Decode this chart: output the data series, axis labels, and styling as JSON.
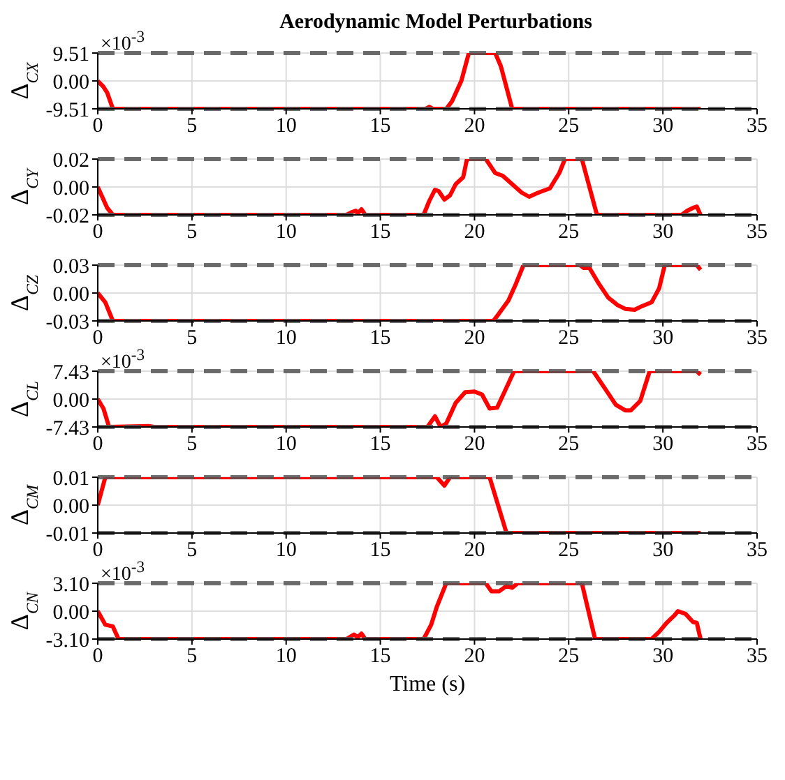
{
  "chart_data": [
    {
      "type": "line",
      "title": "Aerodynamic Model Perturbations",
      "ylabel": "Δ$_{CX}$",
      "annotations": [
        "×10$^{-3}$"
      ],
      "x": [
        0,
        0.3,
        0.5,
        0.8,
        17.4,
        17.6,
        17.8,
        18.5,
        18.8,
        19.3,
        19.7,
        21.1,
        21.4,
        22,
        32
      ],
      "series": [
        {
          "color": "#ff0000",
          "values": [
            0,
            -2,
            -4,
            -9.51,
            -9.51,
            -8.8,
            -9.51,
            -9.51,
            -7,
            0,
            9.51,
            9.51,
            5,
            -9.51,
            -9.51
          ]
        }
      ],
      "xlim": [
        0,
        35
      ],
      "xticks": [
        0,
        5,
        10,
        15,
        20,
        25,
        30,
        35
      ],
      "ylim": [
        -9.51,
        9.51
      ],
      "yticks": [
        {
          "value": -9.51,
          "label": "-9.51"
        },
        {
          "value": 0,
          "label": "0.00"
        },
        {
          "value": 9.51,
          "label": "9.51"
        }
      ],
      "grid": true,
      "line_style": "solid",
      "ref_lines": [
        {
          "axis": "y",
          "value": 9.51,
          "color": "#555555",
          "line_style": "dashed"
        },
        {
          "axis": "y",
          "value": -9.51,
          "color": "#555555",
          "line_style": "dashed"
        }
      ]
    },
    {
      "type": "line",
      "ylabel": "Δ$_{CY}$",
      "x": [
        0,
        0.5,
        0.8,
        13.2,
        13.5,
        13.7,
        13.8,
        14,
        14.2,
        17.3,
        17.6,
        17.9,
        18.1,
        18.4,
        18.7,
        19,
        19.4,
        19.6,
        20.6,
        21.1,
        21.5,
        22,
        22.5,
        22.9,
        23.4,
        24,
        24.5,
        24.8,
        25.7,
        26.5,
        31,
        31.3,
        31.6,
        31.8,
        32
      ],
      "series": [
        {
          "color": "#ff0000",
          "values": [
            0,
            -0.015,
            -0.02,
            -0.02,
            -0.018,
            -0.017,
            -0.019,
            -0.016,
            -0.02,
            -0.02,
            -0.01,
            -0.002,
            -0.003,
            -0.009,
            -0.006,
            0.002,
            0.007,
            0.02,
            0.02,
            0.01,
            0.008,
            0.002,
            -0.004,
            -0.007,
            -0.004,
            -0.001,
            0.01,
            0.02,
            0.02,
            -0.02,
            -0.02,
            -0.017,
            -0.015,
            -0.014,
            -0.02
          ]
        }
      ],
      "xlim": [
        0,
        35
      ],
      "xticks": [
        0,
        5,
        10,
        15,
        20,
        25,
        30,
        35
      ],
      "ylim": [
        -0.02,
        0.02
      ],
      "yticks": [
        {
          "value": -0.02,
          "label": "-0.02"
        },
        {
          "value": 0,
          "label": "0.00"
        },
        {
          "value": 0.02,
          "label": "0.02"
        }
      ],
      "grid": true,
      "line_style": "solid",
      "ref_lines": [
        {
          "axis": "y",
          "value": 0.02,
          "color": "#555555",
          "line_style": "dashed"
        },
        {
          "axis": "y",
          "value": -0.02,
          "color": "#555555",
          "line_style": "dashed"
        }
      ]
    },
    {
      "type": "line",
      "ylabel": "Δ$_{CZ}$",
      "x": [
        0,
        0.4,
        0.8,
        21,
        21.3,
        21.8,
        22.2,
        22.6,
        25.6,
        25.8,
        26.1,
        26.6,
        27.1,
        27.6,
        28,
        28.5,
        28.9,
        29.4,
        29.8,
        30.1,
        31.8,
        32
      ],
      "series": [
        {
          "color": "#ff0000",
          "values": [
            0,
            -0.01,
            -0.03,
            -0.03,
            -0.022,
            -0.008,
            0.01,
            0.03,
            0.03,
            0.027,
            0.027,
            0.01,
            -0.005,
            -0.013,
            -0.017,
            -0.018,
            -0.014,
            -0.01,
            0.005,
            0.03,
            0.03,
            0.025
          ]
        }
      ],
      "xlim": [
        0,
        35
      ],
      "xticks": [
        0,
        5,
        10,
        15,
        20,
        25,
        30,
        35
      ],
      "ylim": [
        -0.03,
        0.03
      ],
      "yticks": [
        {
          "value": -0.03,
          "label": "-0.03"
        },
        {
          "value": 0,
          "label": "0.00"
        },
        {
          "value": 0.03,
          "label": "0.03"
        }
      ],
      "grid": true,
      "line_style": "solid",
      "ref_lines": [
        {
          "axis": "y",
          "value": 0.03,
          "color": "#555555",
          "line_style": "dashed"
        },
        {
          "axis": "y",
          "value": -0.03,
          "color": "#555555",
          "line_style": "dashed"
        }
      ]
    },
    {
      "type": "line",
      "ylabel": "Δ$_{CL}$",
      "annotations": [
        "×10$^{-3}$"
      ],
      "x": [
        0,
        0.3,
        0.6,
        2.7,
        3,
        17.5,
        17.9,
        18.2,
        18.5,
        19,
        19.5,
        20,
        20.4,
        20.8,
        21.2,
        21.6,
        22.1,
        26.3,
        26.9,
        27.5,
        28,
        28.3,
        28.8,
        29.3,
        31.8,
        32
      ],
      "series": [
        {
          "color": "#ff0000",
          "values": [
            0,
            -2.5,
            -7.43,
            -7.2,
            -7.43,
            -7.43,
            -4.6,
            -7.43,
            -6.5,
            -1,
            1.8,
            2,
            1.2,
            -2.5,
            -2.3,
            2,
            7.43,
            7.43,
            3,
            -1.5,
            -3,
            -3,
            -0.5,
            7.43,
            7.43,
            6.5
          ]
        }
      ],
      "xlim": [
        0,
        35
      ],
      "xticks": [
        0,
        5,
        10,
        15,
        20,
        25,
        30,
        35
      ],
      "ylim": [
        -7.43,
        7.43
      ],
      "yticks": [
        {
          "value": -7.43,
          "label": "-7.43"
        },
        {
          "value": 0,
          "label": "0.00"
        },
        {
          "value": 7.43,
          "label": "7.43"
        }
      ],
      "grid": true,
      "line_style": "solid",
      "ref_lines": [
        {
          "axis": "y",
          "value": 7.43,
          "color": "#555555",
          "line_style": "dashed"
        },
        {
          "axis": "y",
          "value": -7.43,
          "color": "#555555",
          "line_style": "dashed"
        }
      ]
    },
    {
      "type": "line",
      "ylabel": "Δ$_{CM}$",
      "x": [
        0,
        0.4,
        18,
        18.4,
        18.7,
        20.8,
        21.7,
        32
      ],
      "series": [
        {
          "color": "#ff0000",
          "values": [
            0,
            0.01,
            0.01,
            0.007,
            0.01,
            0.01,
            -0.01,
            -0.01
          ]
        }
      ],
      "xlim": [
        0,
        35
      ],
      "xticks": [
        0,
        5,
        10,
        15,
        20,
        25,
        30,
        35
      ],
      "ylim": [
        -0.01,
        0.01
      ],
      "yticks": [
        {
          "value": -0.01,
          "label": "-0.01"
        },
        {
          "value": 0,
          "label": "0.00"
        },
        {
          "value": 0.01,
          "label": "0.01"
        }
      ],
      "grid": true,
      "line_style": "solid",
      "ref_lines": [
        {
          "axis": "y",
          "value": 0.01,
          "color": "#555555",
          "line_style": "dashed"
        },
        {
          "axis": "y",
          "value": -0.01,
          "color": "#555555",
          "line_style": "dashed"
        }
      ]
    },
    {
      "type": "line",
      "ylabel": "Δ$_{CN}$",
      "xlabel": "Time (s)",
      "annotations": [
        "×10$^{-3}$"
      ],
      "x": [
        0,
        0.4,
        0.8,
        1.1,
        13.2,
        13.6,
        13.8,
        14,
        14.2,
        17.3,
        17.7,
        18,
        18.5,
        20.6,
        20.9,
        21.3,
        21.7,
        22,
        22.3,
        25.7,
        26.4,
        29.4,
        29.8,
        30.2,
        30.6,
        30.8,
        31.2,
        31.6,
        31.8,
        32
      ],
      "series": [
        {
          "color": "#ff0000",
          "values": [
            0,
            -1.5,
            -1.7,
            -3.1,
            -3.1,
            -2.6,
            -2.9,
            -2.5,
            -3.1,
            -3.1,
            -1.5,
            0.5,
            3.1,
            3.1,
            2.2,
            2.2,
            2.8,
            2.6,
            3.1,
            3.1,
            -3.1,
            -3.1,
            -2.3,
            -1.3,
            -0.5,
            0,
            -0.3,
            -1.2,
            -1.3,
            -3.1
          ]
        }
      ],
      "xlim": [
        0,
        35
      ],
      "xticks": [
        0,
        5,
        10,
        15,
        20,
        25,
        30,
        35
      ],
      "ylim": [
        -3.1,
        3.1
      ],
      "yticks": [
        {
          "value": -3.1,
          "label": "-3.10"
        },
        {
          "value": 0,
          "label": "0.00"
        },
        {
          "value": 3.1,
          "label": "3.10"
        }
      ],
      "grid": true,
      "line_style": "solid",
      "ref_lines": [
        {
          "axis": "y",
          "value": 3.1,
          "color": "#555555",
          "line_style": "dashed"
        },
        {
          "axis": "y",
          "value": -3.1,
          "color": "#555555",
          "line_style": "dashed"
        }
      ]
    }
  ]
}
